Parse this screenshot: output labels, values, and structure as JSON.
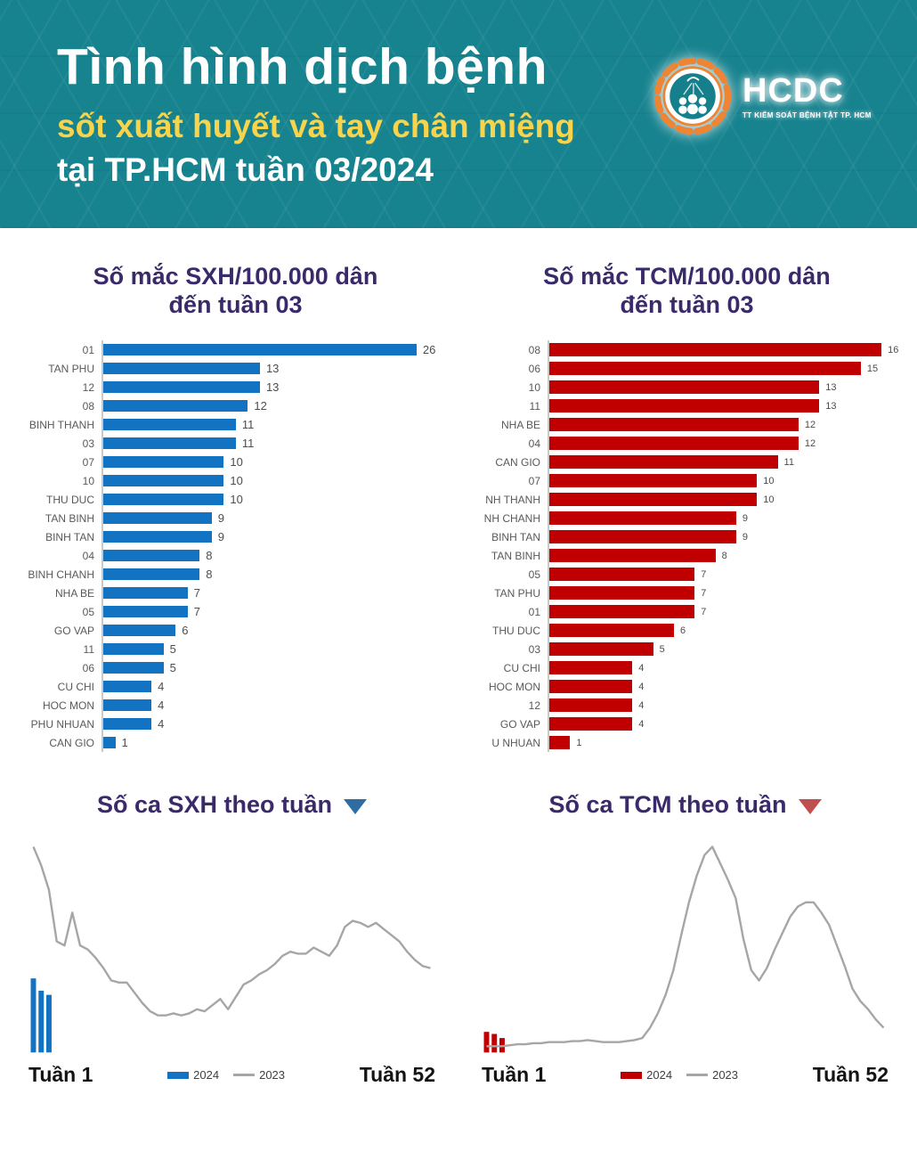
{
  "header": {
    "title": "Tình hình dịch bệnh",
    "subtitle_yellow": "sốt xuất huyết và tay chân miệng",
    "subtitle_white": "tại TP.HCM tuần 03/2024",
    "logo": {
      "acronym": "HCDC",
      "caption": "TT KIỂM SOÁT BỆNH TẬT TP. HCM"
    }
  },
  "colors": {
    "header_background": "#17838F",
    "header_title": "#FFFFFF",
    "header_subtitle_yellow": "#F7D44C",
    "chart_title_purple": "#3A2A6A",
    "sxh_blue": "#1173C2",
    "tcm_red": "#C00000",
    "line_gray_2023": "#A6A6A6",
    "category_label_gray": "#595959",
    "trend_triangle_blue": "#2E6DA4",
    "trend_triangle_red": "#C0504D",
    "logo_orange": "#EE8434"
  },
  "chart_data": [
    {
      "id": "sxh-rate-by-district",
      "type": "bar",
      "orientation": "horizontal",
      "title_lines": [
        "Số mắc SXH/100.000 dân",
        "đến tuần 03"
      ],
      "categories": [
        "01",
        "TAN PHU",
        "12",
        "08",
        "BINH THANH",
        "03",
        "07",
        "10",
        "THU DUC",
        "TAN BINH",
        "BINH TAN",
        "04",
        "BINH CHANH",
        "NHA BE",
        "05",
        "GO VAP",
        "11",
        "06",
        "CU CHI",
        "HOC MON",
        "PHU NHUAN",
        "CAN GIO"
      ],
      "values": [
        26,
        13,
        13,
        12,
        11,
        11,
        10,
        10,
        10,
        9,
        9,
        8,
        8,
        7,
        7,
        6,
        5,
        5,
        4,
        4,
        4,
        1
      ],
      "xlim": [
        0,
        26
      ],
      "bar_color": "#1173C2",
      "bar_area_fraction": 0.9,
      "grid": false,
      "value_labels": true
    },
    {
      "id": "tcm-rate-by-district",
      "type": "bar",
      "orientation": "horizontal",
      "title_lines": [
        "Số mắc TCM/100.000 dân",
        "đến tuần 03"
      ],
      "categories": [
        "08",
        "06",
        "10",
        "11",
        "NHA BE",
        "04",
        "CAN GIO",
        "07",
        "NH THANH",
        "NH CHANH",
        "BINH TAN",
        "TAN BINH",
        "05",
        "TAN PHU",
        "01",
        "THU DUC",
        "03",
        "CU CHI",
        "HOC MON",
        "12",
        "GO VAP",
        "U NHUAN"
      ],
      "values": [
        16,
        15,
        13,
        13,
        12,
        12,
        11,
        10,
        10,
        9,
        9,
        8,
        7,
        7,
        7,
        6,
        5,
        4,
        4,
        4,
        4,
        1
      ],
      "xlim": [
        0,
        16
      ],
      "bar_color": "#C00000",
      "bar_area_fraction": 0.94,
      "grid": false,
      "value_labels": true
    },
    {
      "id": "sxh-cases-by-week",
      "type": "line",
      "title": "Số ca SXH theo tuần",
      "trend_marker": "down-triangle",
      "trend_color": "#2E6DA4",
      "weeks": 52,
      "x_axis": {
        "start_label": "Tuần 1",
        "end_label": "Tuần 52"
      },
      "ylim": [
        0,
        100
      ],
      "y_scale_note": "relative scale, no axis ticks shown",
      "legend": [
        {
          "name": "2024",
          "type": "bar",
          "color": "#1173C2"
        },
        {
          "name": "2023",
          "type": "line",
          "color": "#A6A6A6"
        }
      ],
      "series": [
        {
          "name": "2024",
          "type": "bar",
          "color": "#1173C2",
          "x_weeks": [
            1,
            2,
            3
          ],
          "values": [
            36,
            30,
            28
          ]
        },
        {
          "name": "2023",
          "type": "line",
          "color": "#A6A6A6",
          "values": [
            100,
            91,
            79,
            54,
            52,
            68,
            52,
            50,
            46,
            41,
            35,
            34,
            34,
            29,
            24,
            20,
            18,
            18,
            19,
            18,
            19,
            21,
            20,
            23,
            26,
            21,
            27,
            33,
            35,
            38,
            40,
            43,
            47,
            49,
            48,
            48,
            51,
            49,
            47,
            52,
            61,
            64,
            63,
            61,
            63,
            60,
            57,
            54,
            49,
            45,
            42,
            41
          ]
        }
      ]
    },
    {
      "id": "tcm-cases-by-week",
      "type": "line",
      "title": "Số ca TCM theo tuần",
      "trend_marker": "down-triangle",
      "trend_color": "#C0504D",
      "weeks": 52,
      "x_axis": {
        "start_label": "Tuần 1",
        "end_label": "Tuần 52"
      },
      "ylim": [
        0,
        100
      ],
      "y_scale_note": "relative scale, no axis ticks shown",
      "legend": [
        {
          "name": "2024",
          "type": "bar",
          "color": "#C00000"
        },
        {
          "name": "2023",
          "type": "line",
          "color": "#A6A6A6"
        }
      ],
      "series": [
        {
          "name": "2024",
          "type": "bar",
          "color": "#C00000",
          "x_weeks": [
            1,
            2,
            3
          ],
          "values": [
            10,
            9,
            7
          ]
        },
        {
          "name": "2023",
          "type": "line",
          "color": "#A6A6A6",
          "values": [
            3,
            3,
            3,
            3.5,
            4,
            4,
            4.5,
            4.5,
            5,
            5,
            5,
            5.5,
            5.5,
            6,
            5.5,
            5,
            5,
            5,
            5.5,
            6,
            7,
            12,
            19,
            28,
            40,
            57,
            73,
            86,
            96,
            100,
            92,
            84,
            75,
            55,
            40,
            35,
            41,
            50,
            58,
            66,
            71,
            73,
            73,
            68,
            62,
            52,
            42,
            31,
            25,
            21,
            16,
            12
          ]
        }
      ]
    }
  ]
}
